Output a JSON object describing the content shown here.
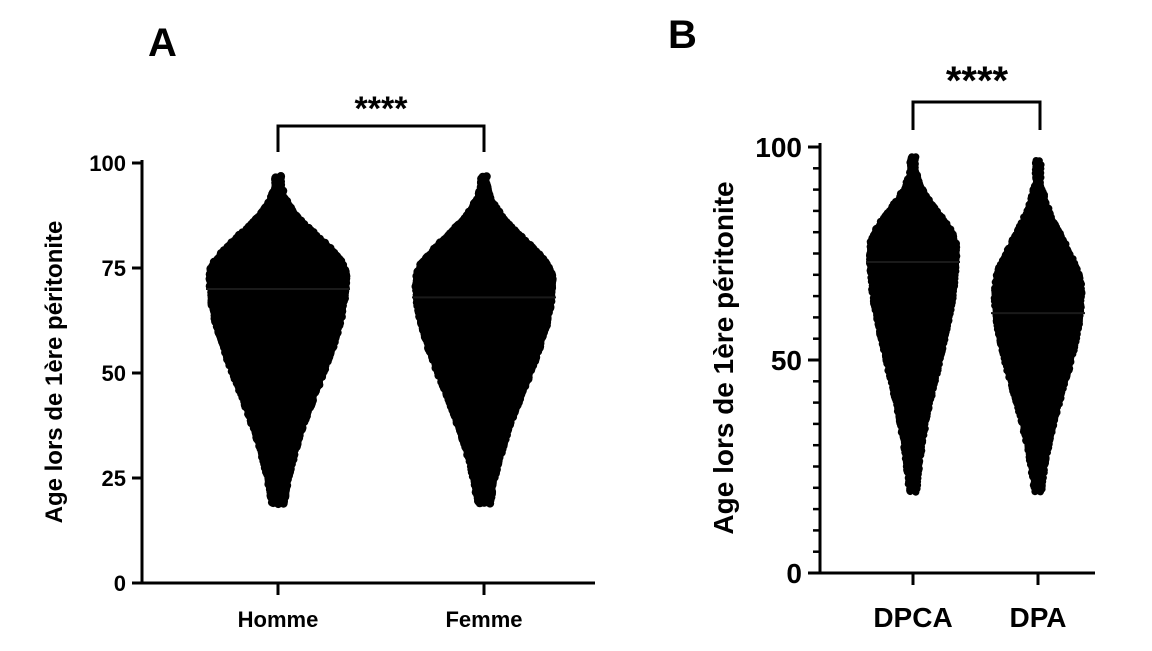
{
  "chart_data": [
    {
      "type": "scatter",
      "panel_label": "A",
      "ylabel": "Age lors de 1ère péritonite",
      "ylim": [
        0,
        100
      ],
      "yticks": [
        0,
        25,
        50,
        75,
        100
      ],
      "ytick_labels": [
        "0",
        "25",
        "50",
        "75",
        "100"
      ],
      "categories": [
        "Homme",
        "Femme"
      ],
      "series": [
        {
          "name": "Homme",
          "min": 19,
          "max": 97,
          "mean": 70,
          "mode": 73
        },
        {
          "name": "Femme",
          "min": 19,
          "max": 97,
          "mean": 68,
          "mode": 72
        }
      ],
      "significance": {
        "between": [
          "Homme",
          "Femme"
        ],
        "label": "****"
      }
    },
    {
      "type": "scatter",
      "panel_label": "B",
      "ylabel": "Age lors de 1ère péritonite",
      "ylim": [
        0,
        100
      ],
      "yticks": [
        0,
        50,
        100
      ],
      "ytick_labels": [
        "0",
        "50",
        "100"
      ],
      "categories": [
        "DPCA",
        "DPA"
      ],
      "series": [
        {
          "name": "DPCA",
          "min": 19,
          "max": 98,
          "mean": 73,
          "mode": 76
        },
        {
          "name": "DPA",
          "min": 19,
          "max": 97,
          "mean": 61,
          "mode": 66
        }
      ],
      "significance": {
        "between": [
          "DPCA",
          "DPA"
        ],
        "label": "****"
      }
    }
  ]
}
